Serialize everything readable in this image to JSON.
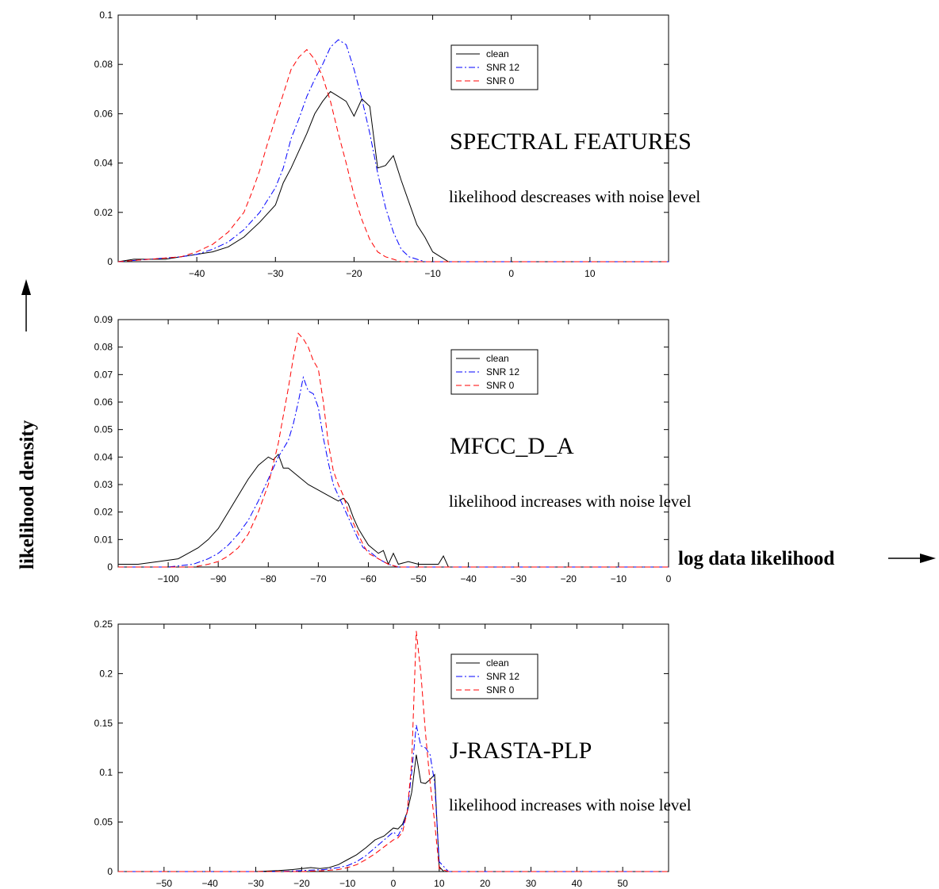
{
  "axis_titles": {
    "y": "likelihood density",
    "x": "log data likelihood"
  },
  "chart_data": [
    {
      "type": "line",
      "title": "",
      "annotation_title": "SPECTRAL FEATURES",
      "annotation_note": "likelihood descreases with noise level",
      "xlim": [
        -50,
        20
      ],
      "ylim": [
        0,
        0.1
      ],
      "xticks": [
        -40,
        -30,
        -20,
        -10,
        0,
        10
      ],
      "yticks": [
        0,
        0.02,
        0.04,
        0.06,
        0.08,
        0.1
      ],
      "ytick_labels": [
        "0",
        "0.02",
        "0.04",
        "0.06",
        "0.08",
        "0.1"
      ],
      "grid": false,
      "legend_position": "top-right",
      "series": [
        {
          "name": "clean",
          "color": "#000000",
          "style": "solid",
          "x": [
            -50,
            -48,
            -46,
            -44,
            -42,
            -40,
            -38,
            -36,
            -34,
            -32,
            -30,
            -29,
            -28,
            -27,
            -26,
            -25,
            -24,
            -23,
            -22,
            -21,
            -20,
            -19,
            -18,
            -17,
            -16,
            -15,
            -14,
            -13,
            -12,
            -11,
            -10,
            -9,
            -8,
            -7,
            -5,
            0,
            10,
            20
          ],
          "y": [
            0,
            0.001,
            0.001,
            0.001,
            0.002,
            0.003,
            0.004,
            0.006,
            0.01,
            0.016,
            0.023,
            0.032,
            0.038,
            0.045,
            0.052,
            0.06,
            0.065,
            0.069,
            0.067,
            0.065,
            0.059,
            0.066,
            0.063,
            0.038,
            0.039,
            0.043,
            0.033,
            0.024,
            0.015,
            0.01,
            0.004,
            0.002,
            0.0,
            0,
            0,
            0,
            0,
            0
          ]
        },
        {
          "name": "SNR 12",
          "color": "#0000ff",
          "style": "dashdot",
          "x": [
            -50,
            -46,
            -42,
            -40,
            -38,
            -36,
            -34,
            -32,
            -30,
            -29,
            -28,
            -27,
            -26,
            -25,
            -24,
            -23,
            -22,
            -21,
            -20,
            -19,
            -18,
            -17,
            -16,
            -15,
            -14,
            -13,
            -12,
            -11,
            -10,
            -9,
            -7,
            0,
            10,
            20
          ],
          "y": [
            0,
            0.001,
            0.002,
            0.003,
            0.005,
            0.008,
            0.013,
            0.02,
            0.03,
            0.038,
            0.05,
            0.058,
            0.067,
            0.074,
            0.08,
            0.087,
            0.09,
            0.088,
            0.078,
            0.066,
            0.052,
            0.036,
            0.022,
            0.012,
            0.005,
            0.002,
            0.001,
            0,
            0,
            0,
            0,
            0,
            0,
            0
          ]
        },
        {
          "name": "SNR 0",
          "color": "#ff0000",
          "style": "dashed",
          "x": [
            -50,
            -46,
            -42,
            -40,
            -38,
            -36,
            -34,
            -33,
            -32,
            -31,
            -30,
            -29,
            -28,
            -27,
            -26,
            -25,
            -24,
            -23,
            -22,
            -21,
            -20,
            -19,
            -18,
            -17,
            -16,
            -15,
            -14,
            -13,
            -12,
            -10,
            0,
            10,
            20
          ],
          "y": [
            0,
            0.001,
            0.002,
            0.004,
            0.007,
            0.012,
            0.02,
            0.028,
            0.037,
            0.048,
            0.058,
            0.068,
            0.078,
            0.083,
            0.086,
            0.082,
            0.075,
            0.065,
            0.052,
            0.04,
            0.027,
            0.017,
            0.009,
            0.004,
            0.002,
            0.001,
            0,
            0,
            0,
            0,
            0,
            0,
            0
          ]
        }
      ]
    },
    {
      "type": "line",
      "title": "",
      "annotation_title": "MFCC_D_A",
      "annotation_note": "likelihood increases with noise level",
      "xlim": [
        -110,
        0
      ],
      "ylim": [
        0,
        0.09
      ],
      "xticks": [
        -100,
        -90,
        -80,
        -70,
        -60,
        -50,
        -40,
        -30,
        -20,
        -10,
        0
      ],
      "yticks": [
        0,
        0.01,
        0.02,
        0.03,
        0.04,
        0.05,
        0.06,
        0.07,
        0.08,
        0.09
      ],
      "ytick_labels": [
        "0",
        "0.01",
        "0.02",
        "0.03",
        "0.04",
        "0.05",
        "0.06",
        "0.07",
        "0.08",
        "0.09"
      ],
      "grid": false,
      "legend_position": "top-right",
      "series": [
        {
          "name": "clean",
          "color": "#000000",
          "style": "solid",
          "x": [
            -110,
            -106,
            -102,
            -98,
            -96,
            -94,
            -92,
            -90,
            -88,
            -86,
            -84,
            -82,
            -80,
            -79,
            -78,
            -77,
            -76,
            -74,
            -72,
            -70,
            -68,
            -66,
            -65,
            -64,
            -63,
            -62,
            -61,
            -60,
            -58,
            -57,
            -56,
            -55,
            -54,
            -52,
            -50,
            -48,
            -46,
            -45,
            -44,
            -40,
            -20,
            0
          ],
          "y": [
            0.001,
            0.001,
            0.002,
            0.003,
            0.005,
            0.007,
            0.01,
            0.014,
            0.02,
            0.026,
            0.032,
            0.037,
            0.04,
            0.039,
            0.041,
            0.036,
            0.036,
            0.033,
            0.03,
            0.028,
            0.026,
            0.024,
            0.025,
            0.023,
            0.018,
            0.014,
            0.011,
            0.008,
            0.005,
            0.006,
            0.001,
            0.005,
            0.001,
            0.002,
            0.001,
            0.001,
            0.001,
            0.004,
            0,
            0,
            0,
            0
          ]
        },
        {
          "name": "SNR 12",
          "color": "#0000ff",
          "style": "dashdot",
          "x": [
            -110,
            -100,
            -95,
            -92,
            -90,
            -88,
            -86,
            -84,
            -82,
            -80,
            -78,
            -76,
            -75,
            -74,
            -73,
            -72,
            -71,
            -70,
            -69,
            -68,
            -67,
            -66,
            -65,
            -64,
            -63,
            -62,
            -61,
            -60,
            -58,
            -56,
            -54,
            -50,
            -40,
            0
          ],
          "y": [
            0,
            0,
            0.001,
            0.003,
            0.005,
            0.008,
            0.012,
            0.017,
            0.024,
            0.032,
            0.04,
            0.046,
            0.052,
            0.06,
            0.069,
            0.064,
            0.063,
            0.058,
            0.047,
            0.038,
            0.03,
            0.026,
            0.022,
            0.018,
            0.014,
            0.01,
            0.007,
            0.006,
            0.003,
            0.001,
            0,
            0,
            0,
            0
          ]
        },
        {
          "name": "SNR 0",
          "color": "#ff0000",
          "style": "dashed",
          "x": [
            -110,
            -95,
            -92,
            -90,
            -88,
            -86,
            -84,
            -82,
            -80,
            -78,
            -77,
            -76,
            -75,
            -74,
            -73,
            -72,
            -71,
            -70,
            -69,
            -68,
            -67,
            -66,
            -65,
            -64,
            -63,
            -62,
            -61,
            -60,
            -58,
            -56,
            -54,
            -50,
            -40,
            0
          ],
          "y": [
            0,
            0,
            0.001,
            0.002,
            0.004,
            0.007,
            0.012,
            0.02,
            0.03,
            0.045,
            0.055,
            0.065,
            0.076,
            0.085,
            0.083,
            0.08,
            0.075,
            0.072,
            0.06,
            0.045,
            0.035,
            0.03,
            0.026,
            0.02,
            0.016,
            0.012,
            0.008,
            0.005,
            0.003,
            0.001,
            0,
            0,
            0,
            0
          ]
        }
      ]
    },
    {
      "type": "line",
      "title": "",
      "annotation_title": "J-RASTA-PLP",
      "annotation_note": "likelihood increases with noise level",
      "xlim": [
        -60,
        60
      ],
      "ylim": [
        0,
        0.25
      ],
      "xticks": [
        -50,
        -40,
        -30,
        -20,
        -10,
        0,
        10,
        20,
        30,
        40,
        50
      ],
      "yticks": [
        0,
        0.05,
        0.1,
        0.15,
        0.2,
        0.25
      ],
      "ytick_labels": [
        "0",
        "0.05",
        "0.1",
        "0.15",
        "0.2",
        "0.25"
      ],
      "grid": false,
      "legend_position": "top-right",
      "series": [
        {
          "name": "clean",
          "color": "#000000",
          "style": "solid",
          "x": [
            -60,
            -30,
            -25,
            -22,
            -20,
            -18,
            -16,
            -14,
            -12,
            -10,
            -8,
            -6,
            -4,
            -2,
            0,
            1,
            2,
            3,
            4,
            5,
            6,
            7,
            8,
            9,
            10,
            11,
            20,
            60
          ],
          "y": [
            0,
            0,
            0.001,
            0.002,
            0.003,
            0.004,
            0.003,
            0.004,
            0.007,
            0.012,
            0.017,
            0.024,
            0.032,
            0.036,
            0.044,
            0.043,
            0.048,
            0.06,
            0.08,
            0.118,
            0.09,
            0.089,
            0.093,
            0.098,
            0.005,
            0,
            0,
            0
          ]
        },
        {
          "name": "SNR 12",
          "color": "#0000ff",
          "style": "dashdot",
          "x": [
            -60,
            -25,
            -20,
            -15,
            -12,
            -10,
            -8,
            -6,
            -4,
            -2,
            0,
            1,
            2,
            3,
            4,
            5,
            6,
            7,
            8,
            9,
            10,
            12,
            60
          ],
          "y": [
            0,
            0,
            0.001,
            0.002,
            0.004,
            0.006,
            0.01,
            0.016,
            0.024,
            0.032,
            0.04,
            0.036,
            0.045,
            0.06,
            0.1,
            0.148,
            0.127,
            0.125,
            0.118,
            0.09,
            0.01,
            0,
            0
          ]
        },
        {
          "name": "SNR 0",
          "color": "#ff0000",
          "style": "dashed",
          "x": [
            -60,
            -20,
            -15,
            -12,
            -10,
            -8,
            -6,
            -4,
            -2,
            0,
            1,
            2,
            3,
            4,
            5,
            6,
            7,
            8,
            9,
            10,
            12,
            60
          ],
          "y": [
            0,
            0,
            0.001,
            0.002,
            0.004,
            0.007,
            0.012,
            0.018,
            0.025,
            0.032,
            0.034,
            0.04,
            0.06,
            0.11,
            0.243,
            0.2,
            0.14,
            0.09,
            0.05,
            0.003,
            0,
            0
          ]
        }
      ]
    }
  ]
}
